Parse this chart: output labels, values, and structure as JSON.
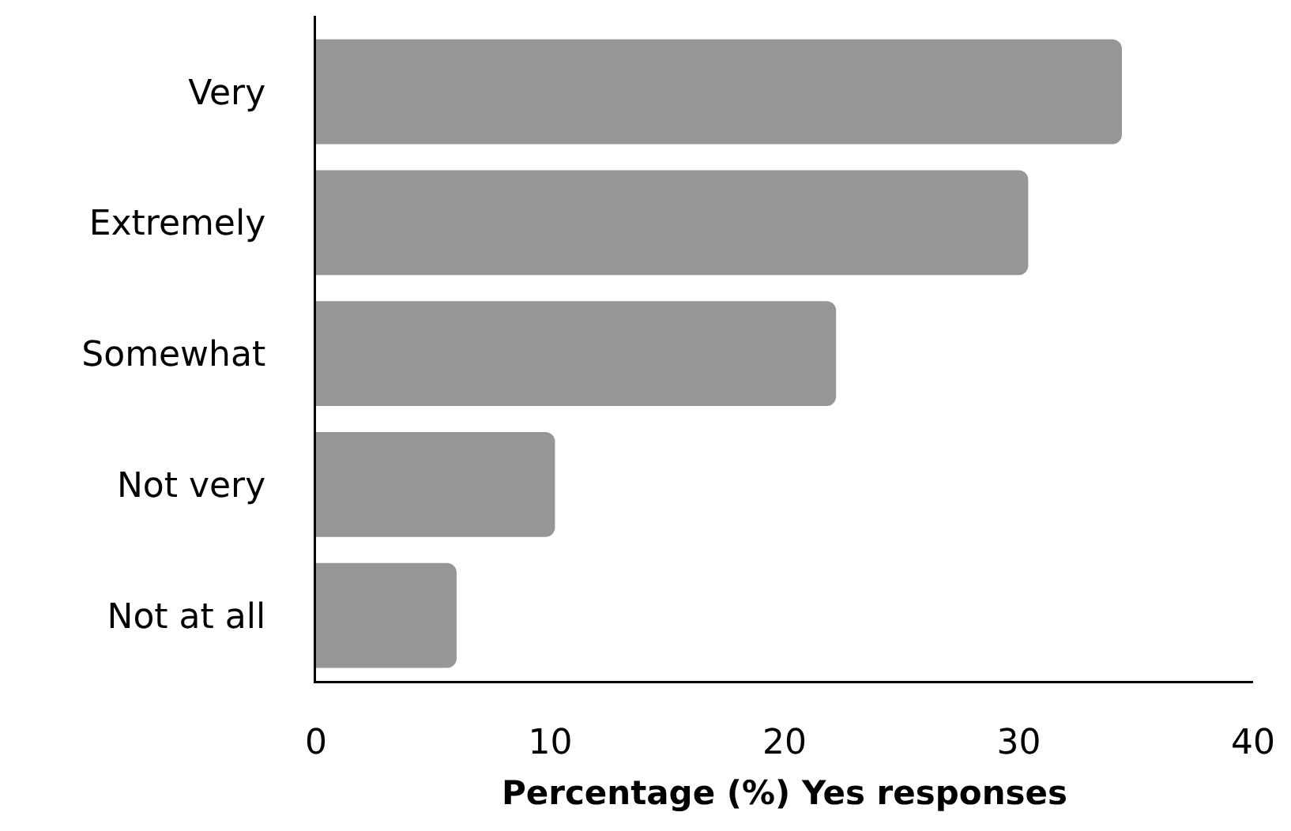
{
  "chart_data": {
    "type": "bar",
    "orientation": "horizontal",
    "categories": [
      "Very",
      "Extremely",
      "Somewhat",
      "Not very",
      "Not at all"
    ],
    "values": [
      34.4,
      30.4,
      22.2,
      10.2,
      6.0
    ],
    "color": "#969696",
    "xlabel": "Percentage (%) Yes responses",
    "xlim": [
      0,
      40
    ],
    "xticks": [
      0,
      10,
      20,
      30,
      40
    ],
    "grid": false
  }
}
